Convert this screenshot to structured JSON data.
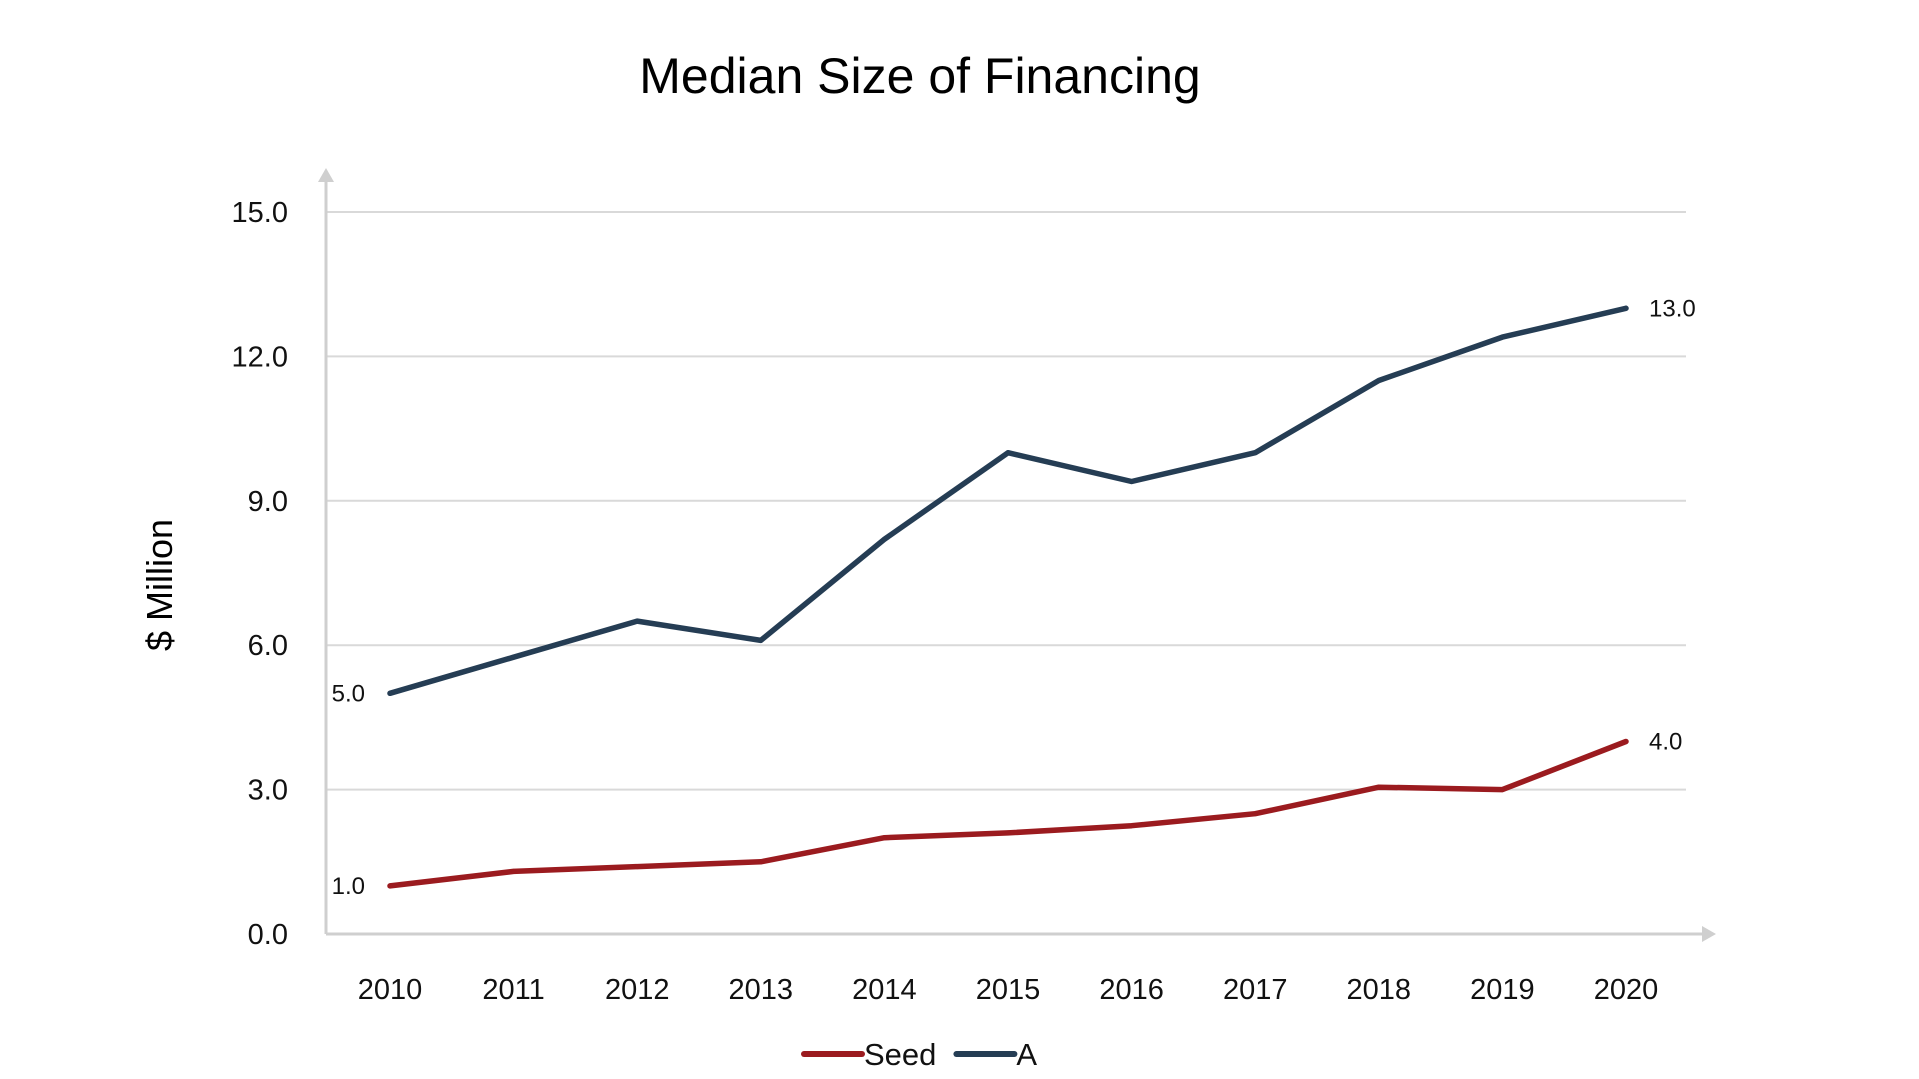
{
  "chart_data": {
    "type": "line",
    "title": "Median Size of Financing",
    "xlabel": "",
    "ylabel": "$ Million",
    "categories": [
      "2010",
      "2011",
      "2012",
      "2013",
      "2014",
      "2015",
      "2016",
      "2017",
      "2018",
      "2019",
      "2020"
    ],
    "ylim": [
      0,
      15
    ],
    "yticks": [
      "0.0",
      "3.0",
      "6.0",
      "9.0",
      "12.0",
      "15.0"
    ],
    "grid": true,
    "legend_position": "bottom",
    "series": [
      {
        "name": "Seed",
        "color": "#9b1b1f",
        "values": [
          1.0,
          1.3,
          1.4,
          1.5,
          2.0,
          2.1,
          2.25,
          2.5,
          3.05,
          3.0,
          4.0
        ],
        "labels": [
          {
            "index": 0,
            "text": "1.0"
          },
          {
            "index": 10,
            "text": "4.0"
          }
        ]
      },
      {
        "name": "A",
        "color": "#253d54",
        "values": [
          5.0,
          5.75,
          6.5,
          6.1,
          8.2,
          10.0,
          9.4,
          10.0,
          11.5,
          12.4,
          13.0
        ],
        "labels": [
          {
            "index": 0,
            "text": "5.0"
          },
          {
            "index": 10,
            "text": "13.0"
          }
        ]
      }
    ]
  }
}
